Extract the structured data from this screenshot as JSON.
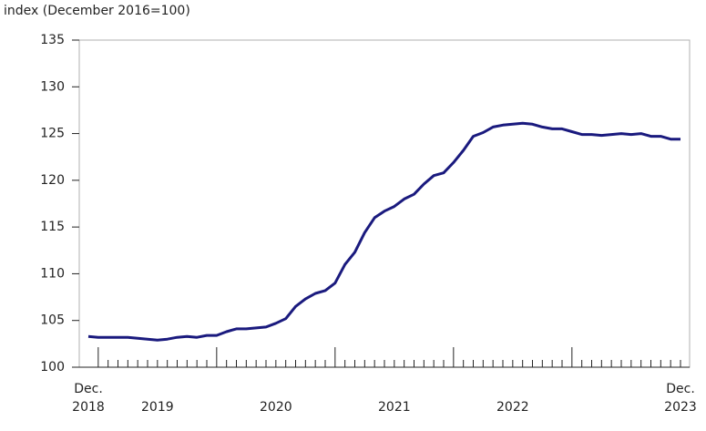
{
  "chart_data": {
    "type": "line",
    "y_axis_label": "index (December 2016=100)",
    "categories": [
      "Dec.\n2018",
      null,
      null,
      null,
      null,
      null,
      null,
      "2019",
      null,
      null,
      null,
      null,
      null,
      null,
      null,
      null,
      null,
      null,
      null,
      "2020",
      null,
      null,
      null,
      null,
      null,
      null,
      null,
      null,
      null,
      null,
      null,
      "2021",
      null,
      null,
      null,
      null,
      null,
      null,
      null,
      null,
      null,
      null,
      null,
      "2022",
      null,
      null,
      null,
      null,
      null,
      null,
      null,
      null,
      null,
      null,
      null,
      null,
      null,
      null,
      null,
      null,
      "Dec.\n2023"
    ],
    "series": [
      {
        "color": "#1a1a7e",
        "values": [
          103.3,
          103.2,
          103.2,
          103.2,
          103.2,
          103.1,
          103.0,
          102.9,
          103.0,
          103.2,
          103.3,
          103.2,
          103.4,
          103.4,
          103.8,
          104.1,
          104.1,
          104.2,
          104.3,
          104.7,
          105.2,
          106.5,
          107.3,
          107.9,
          108.2,
          109.0,
          111.0,
          112.3,
          114.4,
          116.0,
          116.7,
          117.2,
          118.0,
          118.5,
          119.6,
          120.5,
          120.8,
          121.9,
          123.2,
          124.7,
          125.1,
          125.7,
          125.9,
          126.0,
          126.1,
          126.0,
          125.7,
          125.5,
          125.5,
          125.2,
          124.9,
          124.9,
          124.8,
          124.9,
          125.0,
          124.9,
          125.0,
          124.7,
          124.7,
          124.4,
          124.4
        ]
      }
    ],
    "ylim": [
      100,
      135
    ],
    "yticks": [
      100,
      105,
      110,
      115,
      120,
      125,
      130,
      135
    ],
    "grid": false
  }
}
